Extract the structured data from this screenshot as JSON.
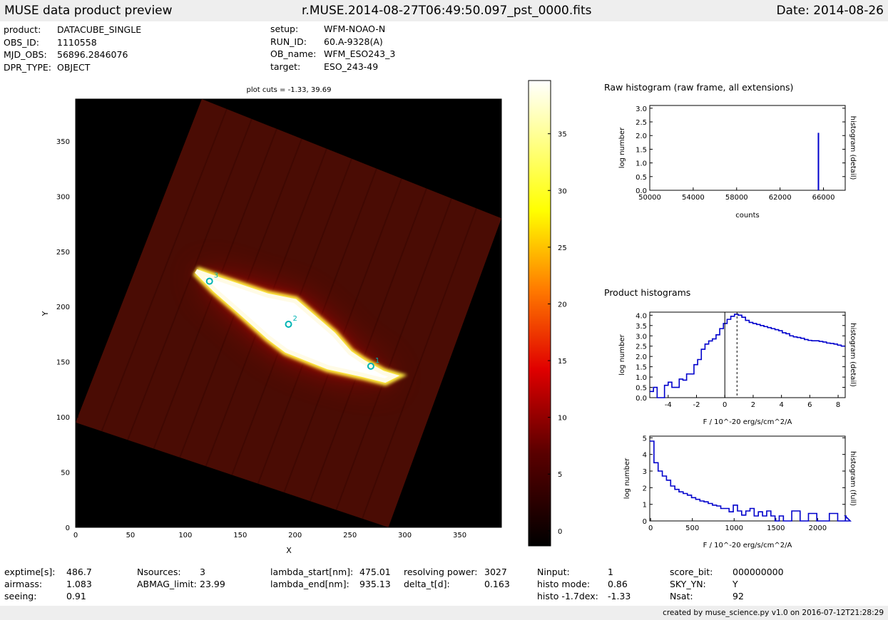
{
  "header": {
    "title": "MUSE data product preview",
    "filename": "r.MUSE.2014-08-27T06:49:50.097_pst_0000.fits",
    "date": "Date: 2014-08-26"
  },
  "meta_left": [
    {
      "key": "product:",
      "value": "DATACUBE_SINGLE"
    },
    {
      "key": "OBS_ID:",
      "value": "1110558"
    },
    {
      "key": "MJD_OBS:",
      "value": "56896.2846076"
    },
    {
      "key": "DPR_TYPE:",
      "value": "OBJECT"
    }
  ],
  "meta_right": [
    {
      "key": "setup:",
      "value": "WFM-NOAO-N"
    },
    {
      "key": "RUN_ID:",
      "value": "60.A-9328(A)"
    },
    {
      "key": "OB_name:",
      "value": "WFM_ESO243_3"
    },
    {
      "key": "target:",
      "value": "ESO_243-49"
    }
  ],
  "footer": {
    "col1": [
      {
        "key": "exptime[s]:",
        "value": "486.7"
      },
      {
        "key": "airmass:",
        "value": "1.083"
      },
      {
        "key": "seeing:",
        "value": "0.91"
      }
    ],
    "col2": [
      {
        "key": "Nsources:",
        "value": "3"
      },
      {
        "key": "ABMAG_limit:",
        "value": "23.99"
      }
    ],
    "col3": [
      {
        "key": "lambda_start[nm]:",
        "value": "475.01"
      },
      {
        "key": "lambda_end[nm]:",
        "value": "935.13"
      }
    ],
    "col4": [
      {
        "key": "resolving power:",
        "value": "3027"
      },
      {
        "key": "delta_t[d]:",
        "value": "0.163"
      }
    ],
    "col5": [
      {
        "key": "Ninput:",
        "value": "1"
      },
      {
        "key": "histo mode:",
        "value": "0.86"
      },
      {
        "key": "histo -1.7dex:",
        "value": "-1.33"
      }
    ],
    "col6": [
      {
        "key": "score_bit:",
        "value": "000000000"
      },
      {
        "key": "SKY_YN:",
        "value": "Y"
      },
      {
        "key": "Nsat:",
        "value": "92"
      }
    ],
    "created": "created by muse_science.py v1.0 on 2016-07-12T21:28:29"
  },
  "chart_data": [
    {
      "type": "heatmap",
      "title": "plot cuts = -1.33, 39.69",
      "xlabel": "X",
      "ylabel": "Y",
      "xlim": [
        0,
        388
      ],
      "ylim": [
        0,
        388
      ],
      "xticks": [
        0,
        50,
        100,
        150,
        200,
        250,
        300,
        350
      ],
      "yticks": [
        0,
        50,
        100,
        150,
        200,
        250,
        300,
        350
      ],
      "colormap": "hot",
      "colorbar_range": [
        -1.33,
        39.69
      ],
      "colorbar_ticks": [
        0,
        5,
        10,
        15,
        20,
        25,
        30,
        35
      ],
      "field_corners": [
        [
          115,
          388
        ],
        [
          388,
          280
        ],
        [
          285,
          0
        ],
        [
          0,
          95
        ]
      ],
      "galaxy_polygon": [
        [
          110,
          232
        ],
        [
          130,
          225
        ],
        [
          175,
          210
        ],
        [
          200,
          205
        ],
        [
          235,
          175
        ],
        [
          250,
          158
        ],
        [
          262,
          150
        ],
        [
          280,
          140
        ],
        [
          290,
          137
        ],
        [
          282,
          133
        ],
        [
          262,
          138
        ],
        [
          230,
          145
        ],
        [
          192,
          160
        ],
        [
          176,
          172
        ],
        [
          150,
          195
        ],
        [
          127,
          215
        ]
      ],
      "sources": [
        {
          "label": "1",
          "x": 269,
          "y": 146
        },
        {
          "label": "2",
          "x": 194,
          "y": 184
        },
        {
          "label": "3",
          "x": 122,
          "y": 223
        }
      ],
      "source_color": "#00b4b4"
    },
    {
      "type": "bar",
      "title": "Raw histogram (raw frame, all extensions)",
      "xlabel": "counts",
      "ylabel": "log number",
      "ylabel_right": "histogram (detail)",
      "xlim": [
        50000,
        68000
      ],
      "ylim": [
        0,
        3.1
      ],
      "xticks": [
        50000,
        54000,
        58000,
        62000,
        66000
      ],
      "yticks": [
        0.0,
        0.5,
        1.0,
        1.5,
        2.0,
        2.5,
        3.0
      ],
      "x": [
        65535
      ],
      "values": [
        2.1
      ],
      "color": "#0000cc"
    },
    {
      "type": "line",
      "section_title": "Product histograms",
      "xlabel": "F / 10^-20 erg/s/cm^2/A",
      "ylabel": "log number",
      "ylabel_right": "histogram (detail)",
      "xlim": [
        -5.3,
        8.5
      ],
      "ylim": [
        0,
        4.15
      ],
      "xticks": [
        -4,
        -2,
        0,
        2,
        4,
        6,
        8
      ],
      "yticks": [
        0.0,
        0.5,
        1.0,
        1.5,
        2.0,
        2.5,
        3.0,
        3.5,
        4.0
      ],
      "step": 0.26,
      "x_start": -5.3,
      "values": [
        0.3,
        0.5,
        0,
        0,
        0.6,
        0.75,
        0.5,
        0.5,
        0.9,
        0.85,
        1.15,
        1.15,
        1.6,
        1.85,
        2.35,
        2.6,
        2.75,
        2.85,
        3.05,
        3.35,
        3.6,
        3.8,
        3.95,
        4.05,
        4.0,
        3.9,
        3.75,
        3.65,
        3.6,
        3.55,
        3.5,
        3.45,
        3.4,
        3.35,
        3.3,
        3.25,
        3.15,
        3.1,
        3.0,
        2.95,
        2.92,
        2.88,
        2.82,
        2.78,
        2.76,
        2.76,
        2.73,
        2.7,
        2.65,
        2.63,
        2.6,
        2.55,
        2.5
      ],
      "vline_solid": 0,
      "vline_dotted": 0.86,
      "color": "#0000cc"
    },
    {
      "type": "line",
      "xlabel": "F / 10^-20 erg/s/cm^2/A",
      "ylabel": "log number",
      "ylabel_right": "histogram (full)",
      "xlim": [
        -10,
        2330
      ],
      "ylim": [
        0,
        5.1
      ],
      "xticks": [
        0,
        500,
        1000,
        1500,
        2000
      ],
      "yticks": [
        0,
        1,
        2,
        3,
        4,
        5
      ],
      "step": 50,
      "x_start": -10,
      "values": [
        4.8,
        3.5,
        3.0,
        2.7,
        2.45,
        2.1,
        1.9,
        1.75,
        1.65,
        1.55,
        1.4,
        1.3,
        1.2,
        1.15,
        1.05,
        0.95,
        0.9,
        0.75,
        0.75,
        0.55,
        0.95,
        0.6,
        0.35,
        0.6,
        0.75,
        0.3,
        0.55,
        0.3,
        0.6,
        0.3,
        0,
        0.3,
        0,
        0,
        0.6,
        0.6,
        0,
        0,
        0.45,
        0.45,
        0,
        0,
        0,
        0.45,
        0.45,
        0,
        0,
        0.3,
        0
      ]
    }
  ]
}
